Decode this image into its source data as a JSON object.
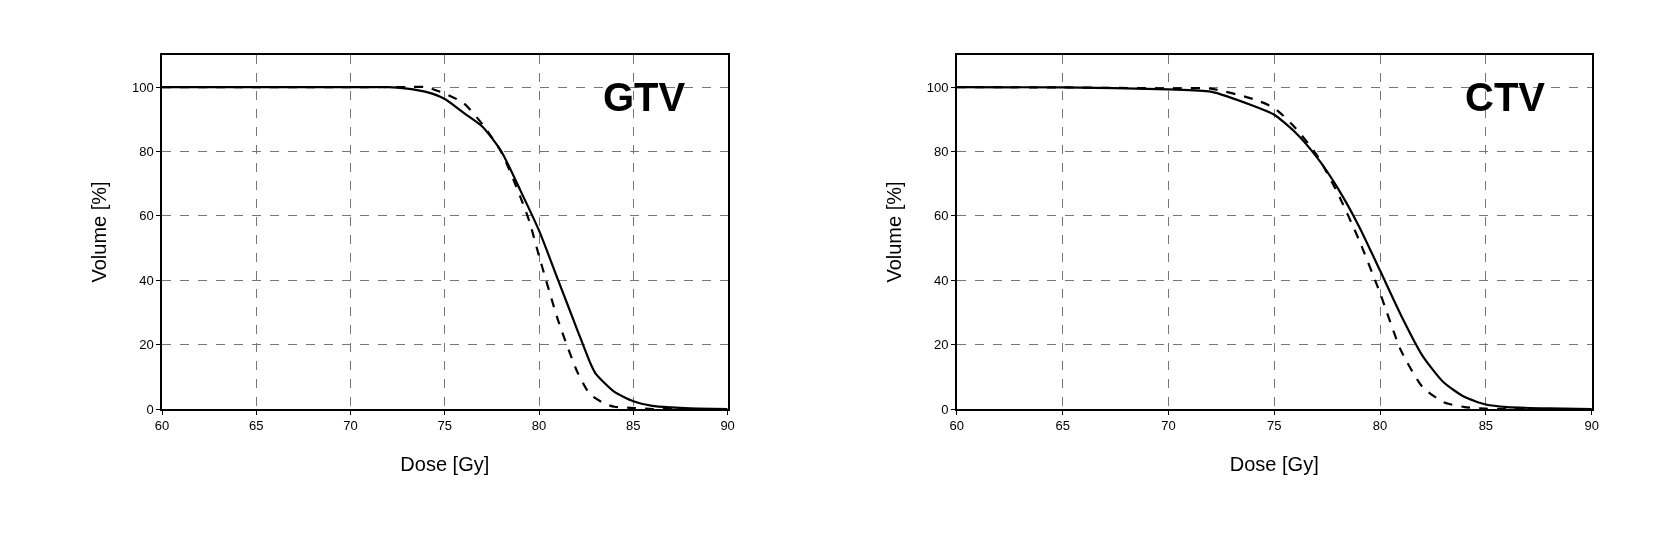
{
  "chart_data": [
    {
      "type": "line",
      "title": "GTV",
      "xlabel": "Dose [Gy]",
      "ylabel": "Volume [%]",
      "xlim": [
        60,
        90
      ],
      "ylim": [
        0,
        110
      ],
      "xticks": [
        60,
        65,
        70,
        75,
        80,
        85,
        90
      ],
      "yticks": [
        0,
        20,
        40,
        60,
        80,
        100
      ],
      "grid": true,
      "marker": "none",
      "series": [
        {
          "color": "#000000",
          "line_style": "solid",
          "x": [
            60,
            65,
            70,
            71,
            72,
            73,
            74,
            75,
            76,
            77,
            78,
            79,
            80,
            81,
            82,
            82.7,
            83,
            84,
            85,
            86,
            87,
            88,
            90
          ],
          "values": [
            100,
            100,
            100,
            100,
            100,
            99.5,
            98.5,
            96.3,
            92,
            87.7,
            80,
            68,
            55.4,
            40.2,
            25,
            14.5,
            11,
            5.3,
            2.4,
            1,
            0.5,
            0.2,
            0
          ]
        },
        {
          "color": "#000000",
          "line_style": "dashed",
          "x": [
            60,
            65,
            70,
            73,
            74,
            75,
            76,
            77,
            78,
            79,
            79.5,
            80,
            81,
            82,
            82.7,
            83.5,
            84,
            85,
            86,
            90
          ],
          "values": [
            100,
            100,
            100,
            100,
            100,
            98,
            95,
            88.4,
            79.8,
            66,
            58,
            47.5,
            27.7,
            11.9,
            4.6,
            1.6,
            0.7,
            0.3,
            0,
            0
          ]
        }
      ]
    },
    {
      "type": "line",
      "title": "CTV",
      "xlabel": "Dose [Gy]",
      "ylabel": "Volume [%]",
      "xlim": [
        60,
        90
      ],
      "ylim": [
        0,
        110
      ],
      "xticks": [
        60,
        65,
        70,
        75,
        80,
        85,
        90
      ],
      "yticks": [
        0,
        20,
        40,
        60,
        80,
        100
      ],
      "grid": true,
      "marker": "none",
      "series": [
        {
          "color": "#000000",
          "line_style": "solid",
          "x": [
            60,
            65,
            70,
            72,
            74,
            75,
            76,
            77,
            78,
            79,
            80,
            81,
            82,
            83,
            84,
            85,
            86,
            88,
            90
          ],
          "values": [
            100,
            99.9,
            99.3,
            98.6,
            94.2,
            91.4,
            85.9,
            78.3,
            68.6,
            56.8,
            43,
            29,
            16.6,
            8.3,
            3.7,
            1.4,
            0.6,
            0.2,
            0
          ]
        },
        {
          "color": "#000000",
          "line_style": "dashed",
          "x": [
            60,
            65,
            70,
            72,
            74,
            75,
            76,
            77,
            78,
            79,
            80,
            81,
            82,
            83,
            84,
            85,
            86,
            90
          ],
          "values": [
            100,
            99.9,
            99.6,
            99.5,
            96.3,
            93.5,
            87.3,
            79,
            67,
            52.6,
            36,
            18,
            6.9,
            2.1,
            0.6,
            0.1,
            0,
            0
          ]
        }
      ]
    }
  ]
}
